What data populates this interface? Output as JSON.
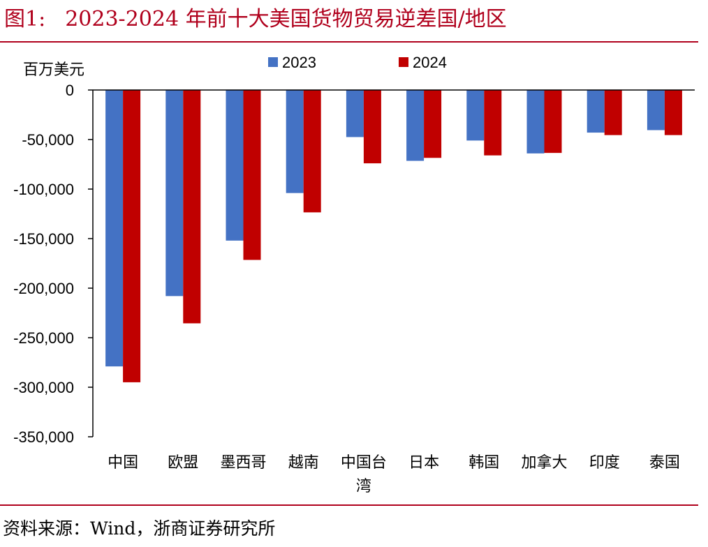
{
  "figure": {
    "prefix": "图1:",
    "title": "2023-2024 年前十大美国货物贸易逆差国/地区"
  },
  "source": "资料来源：Wind，浙商证券研究所",
  "chart_data": {
    "type": "bar",
    "unit_label": "百万美元",
    "categories": [
      [
        "中国"
      ],
      [
        "欧盟"
      ],
      [
        "墨西哥"
      ],
      [
        "越南"
      ],
      [
        "中国台",
        "湾"
      ],
      [
        "日本"
      ],
      [
        "韩国"
      ],
      [
        "加拿大"
      ],
      [
        "印度"
      ],
      [
        "泰国"
      ]
    ],
    "series": [
      {
        "name": "2023",
        "color": "#4472c4",
        "values": [
          -279000,
          -208000,
          -152000,
          -104000,
          -47500,
          -71500,
          -51000,
          -64000,
          -43000,
          -40500
        ]
      },
      {
        "name": "2024",
        "color": "#c00000",
        "values": [
          -295000,
          -235500,
          -171500,
          -123500,
          -74000,
          -68500,
          -66000,
          -63500,
          -45500,
          -45500
        ]
      }
    ],
    "ylim": [
      -350000,
      0
    ],
    "yticks": [
      0,
      -50000,
      -100000,
      -150000,
      -200000,
      -250000,
      -300000,
      -350000
    ],
    "ytick_labels": [
      "0",
      "-50,000",
      "-100,000",
      "-150,000",
      "-200,000",
      "-250,000",
      "-300,000",
      "-350,000"
    ],
    "legend_position": "top",
    "grid": false
  }
}
